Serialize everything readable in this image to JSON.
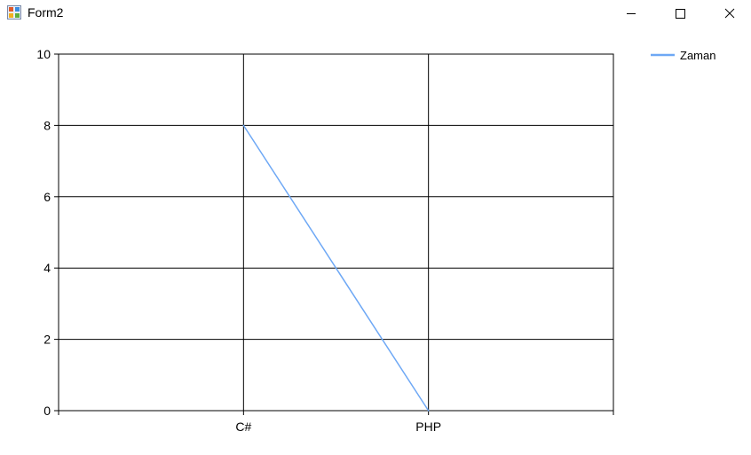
{
  "window": {
    "title": "Form2",
    "controls": {
      "minimize": "minimize",
      "maximize": "maximize",
      "close": "close"
    }
  },
  "chart_data": {
    "type": "line",
    "categories": [
      "C#",
      "PHP"
    ],
    "series": [
      {
        "name": "Zaman",
        "values": [
          8,
          0
        ],
        "color": "#6ea8f5"
      }
    ],
    "ylim": [
      0,
      10
    ],
    "yticks": [
      0,
      2,
      4,
      6,
      8,
      10
    ],
    "grid": true,
    "legend": "top-right"
  }
}
